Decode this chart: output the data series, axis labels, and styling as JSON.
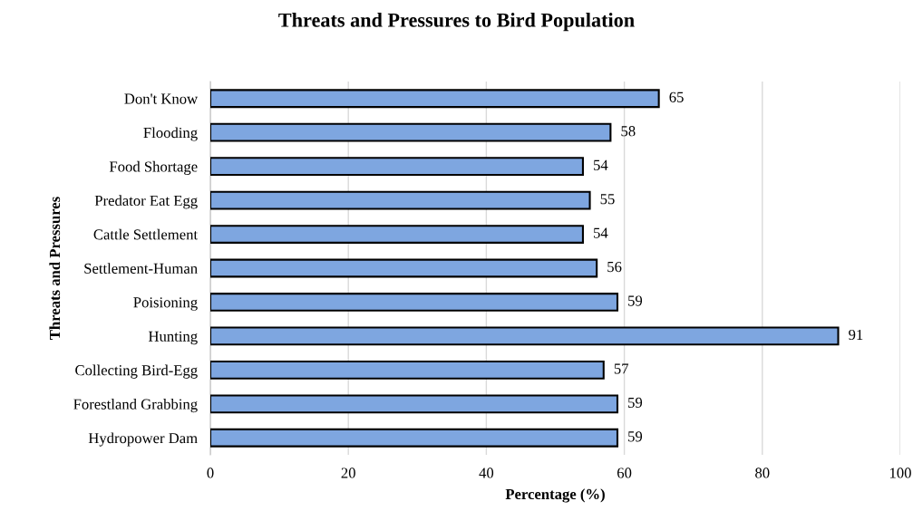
{
  "chart_data": {
    "type": "bar",
    "orientation": "horizontal",
    "title": "Threats and Pressures to Bird Population",
    "xlabel": "Percentage (%)",
    "ylabel": "Threats and Pressures",
    "categories": [
      "Don't Know",
      "Flooding",
      "Food Shortage",
      "Predator Eat Egg",
      "Cattle Settlement",
      "Settlement-Human",
      "Poisioning",
      "Hunting",
      "Collecting Bird-Egg",
      "Forestland Grabbing",
      "Hydropower Dam"
    ],
    "values": [
      65,
      58,
      54,
      55,
      54,
      56,
      59,
      91,
      57,
      59,
      59
    ],
    "color": "#7ea6e0",
    "xlim": [
      0,
      100
    ],
    "xticks": [
      0,
      20,
      40,
      60,
      80,
      100
    ],
    "grid": "x",
    "data_labels": true
  }
}
